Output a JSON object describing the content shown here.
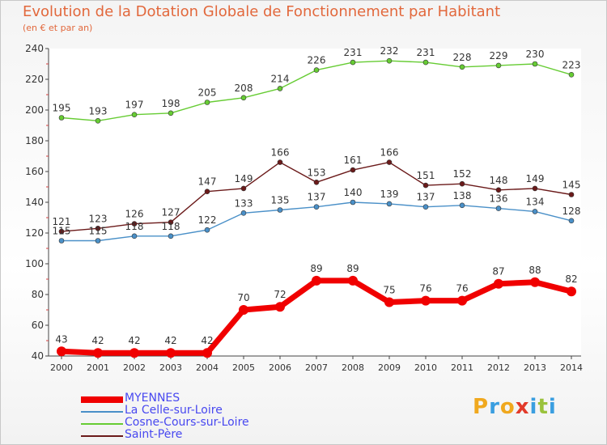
{
  "title": "Evolution de la Dotation Globale de Fonctionnement par Habitant",
  "subtitle": "(en € et par an)",
  "logo": {
    "text": "Proxiti",
    "colors": [
      "#f0a81e",
      "#3a9ee0",
      "#f0a81e",
      "#e23a2a",
      "#3a9ee0",
      "#9ac23c",
      "#3a9ee0"
    ]
  },
  "chart_data": {
    "type": "line",
    "x": [
      "2000",
      "2001",
      "2002",
      "2003",
      "2004",
      "2005",
      "2006",
      "2007",
      "2008",
      "2009",
      "2010",
      "2011",
      "2012",
      "2013",
      "2014"
    ],
    "ylim": [
      40,
      240
    ],
    "yticks": [
      40,
      60,
      80,
      100,
      120,
      140,
      160,
      180,
      200,
      220,
      240
    ],
    "grid": false,
    "legend_position": "bottom-left",
    "series": [
      {
        "name": "MYENNES",
        "color": "#f00000",
        "values": [
          43,
          42,
          42,
          42,
          42,
          70,
          72,
          89,
          89,
          75,
          76,
          76,
          87,
          88,
          82
        ]
      },
      {
        "name": "La Celle-sur-Loire",
        "color": "#4a90c8",
        "values": [
          115,
          115,
          118,
          118,
          122,
          133,
          135,
          137,
          140,
          139,
          137,
          138,
          136,
          134,
          128
        ]
      },
      {
        "name": "Cosne-Cours-sur-Loire",
        "color": "#66cc33",
        "values": [
          195,
          193,
          197,
          198,
          205,
          208,
          214,
          226,
          231,
          232,
          231,
          228,
          229,
          230,
          223
        ]
      },
      {
        "name": "Saint-Père",
        "color": "#6b1a1a",
        "values": [
          121,
          123,
          126,
          127,
          147,
          149,
          166,
          153,
          161,
          166,
          151,
          152,
          148,
          149,
          145
        ]
      }
    ]
  }
}
